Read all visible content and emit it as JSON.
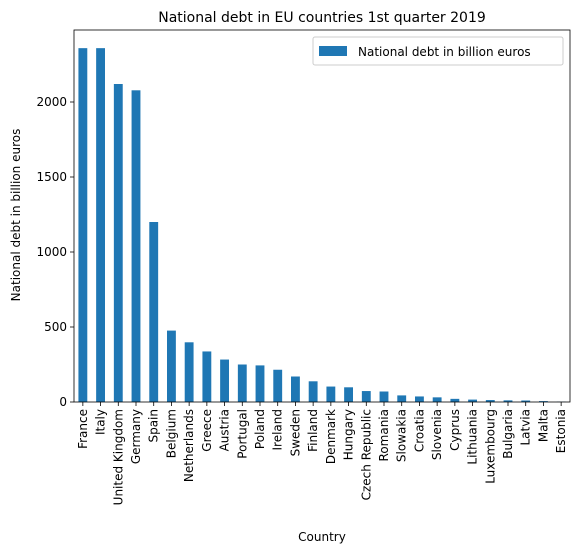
{
  "chart_data": {
    "type": "bar",
    "title": "National debt in EU countries 1st quarter 2019",
    "xlabel": "Country",
    "ylabel": "National debt in billion euros",
    "categories": [
      "France",
      "Italy",
      "United Kingdom",
      "Germany",
      "Spain",
      "Belgium",
      "Netherlands",
      "Greece",
      "Austria",
      "Portugal",
      "Poland",
      "Ireland",
      "Sweden",
      "Finland",
      "Denmark",
      "Hungary",
      "Czech Republic",
      "Romania",
      "Slowakia",
      "Croatia",
      "Slovenia",
      "Cyprus",
      "Lithuania",
      "Luxembourg",
      "Bulgaria",
      "Latvia",
      "Malta",
      "Estonia"
    ],
    "series": [
      {
        "name": "National debt in billion euros",
        "color": "#1f77b4",
        "values": [
          2359,
          2359,
          2120,
          2078,
          1200,
          476,
          398,
          337,
          283,
          250,
          244,
          215,
          170,
          138,
          103,
          98,
          73,
          70,
          44,
          37,
          31,
          21,
          16,
          13,
          11,
          10,
          6,
          2
        ]
      }
    ],
    "ylim": [
      0,
      2480
    ],
    "yticks": [
      0,
      500,
      1000,
      1500,
      2000
    ],
    "legend": "top-right",
    "grid": false
  }
}
